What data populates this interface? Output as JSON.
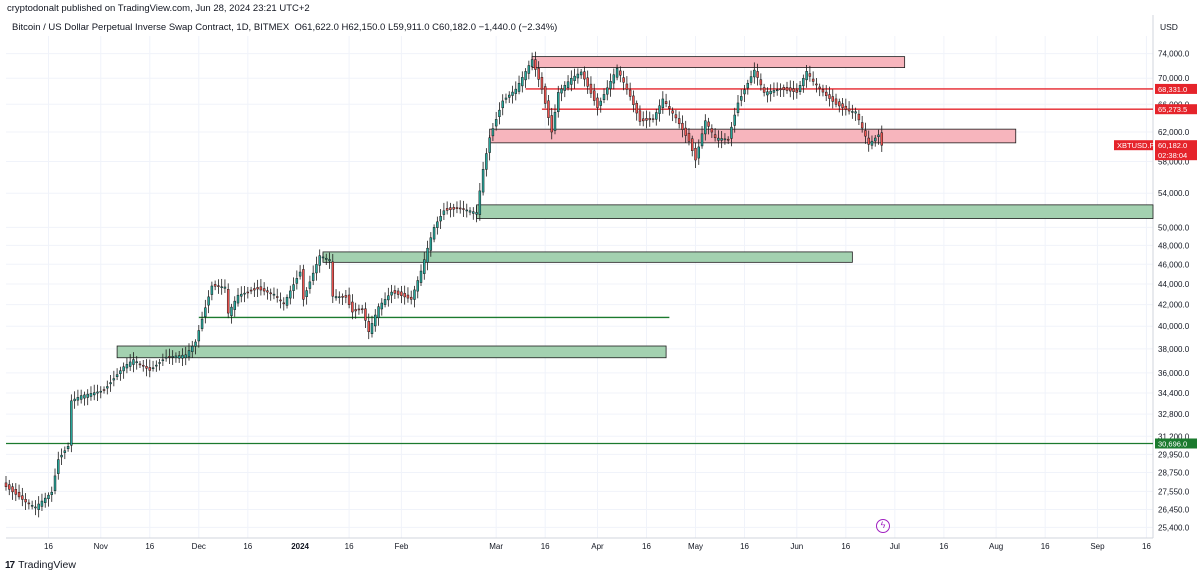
{
  "header": {
    "publisher": "cryptodonalt published on TradingView.com, Jun 28, 2024 23:21 UTC+2",
    "symbol": "Bitcoin / US Dollar Perpetual Inverse Swap Contract, 1D, BITMEX",
    "ohlc": "O61,622.0  H62,150.0  L59,911.0  C60,182.0  −1,440.0 (−2.34%)"
  },
  "footer": {
    "logo_mark": "17",
    "logo_text": "TradingView"
  },
  "colors": {
    "up": "#26a69a",
    "down": "#ef5350",
    "resistance_fill": "#f7b5bd",
    "resistance_line": "#e5242b",
    "support_fill": "#a3d1b0",
    "support_line": "#1b7a2e",
    "grid": "#f0f3fa"
  },
  "chart_data": {
    "type": "candlestick",
    "title": "Bitcoin / US Dollar Perpetual Inverse Swap Contract, 1D, BITMEX",
    "currency": "USD",
    "y_scale": "log",
    "ylim": [
      24800,
      77000
    ],
    "x_date_range": [
      "2023-10-03",
      "2024-09-18"
    ],
    "y_ticks": [
      "74,000.0",
      "70,000.0",
      "66,000.0",
      "62,000.0",
      "58,000.0",
      "54,000.0",
      "50,000.0",
      "48,000.0",
      "46,000.0",
      "44,000.0",
      "42,000.0",
      "40,000.0",
      "38,000.0",
      "36,000.0",
      "34,400.0",
      "32,800.0",
      "31,200.0",
      "29,950.0",
      "28,750.0",
      "27,550.0",
      "26,450.0",
      "25,400.0"
    ],
    "y_tick_values": [
      74000,
      70000,
      66000,
      62000,
      58000,
      54000,
      50000,
      48000,
      46000,
      44000,
      42000,
      40000,
      38000,
      36000,
      34400,
      32800,
      31200,
      29950,
      28750,
      27550,
      26450,
      25400
    ],
    "x_ticks": [
      {
        "label": "16",
        "date": "2023-10-16"
      },
      {
        "label": "Nov",
        "date": "2023-11-01"
      },
      {
        "label": "16",
        "date": "2023-11-16"
      },
      {
        "label": "Dec",
        "date": "2023-12-01"
      },
      {
        "label": "16",
        "date": "2023-12-16"
      },
      {
        "label": "2024",
        "date": "2024-01-01",
        "bold": true
      },
      {
        "label": "16",
        "date": "2024-01-16"
      },
      {
        "label": "Feb",
        "date": "2024-02-01"
      },
      {
        "label": "Mar",
        "date": "2024-03-01"
      },
      {
        "label": "16",
        "date": "2024-03-16"
      },
      {
        "label": "Apr",
        "date": "2024-04-01"
      },
      {
        "label": "16",
        "date": "2024-04-16"
      },
      {
        "label": "May",
        "date": "2024-05-01"
      },
      {
        "label": "16",
        "date": "2024-05-16"
      },
      {
        "label": "Jun",
        "date": "2024-06-01"
      },
      {
        "label": "16",
        "date": "2024-06-16"
      },
      {
        "label": "Jul",
        "date": "2024-07-01"
      },
      {
        "label": "16",
        "date": "2024-07-16"
      },
      {
        "label": "Aug",
        "date": "2024-08-01"
      },
      {
        "label": "16",
        "date": "2024-08-16"
      },
      {
        "label": "Sep",
        "date": "2024-09-01"
      },
      {
        "label": "16",
        "date": "2024-09-16"
      }
    ],
    "price_path": [
      [
        "2023-10-03",
        28000
      ],
      [
        "2023-10-10",
        26900
      ],
      [
        "2023-10-13",
        26600
      ],
      [
        "2023-10-18",
        27500
      ],
      [
        "2023-10-20",
        29600
      ],
      [
        "2023-10-23",
        30500
      ],
      [
        "2023-10-24",
        33800
      ],
      [
        "2023-10-27",
        34200
      ],
      [
        "2023-11-03",
        34600
      ],
      [
        "2023-11-09",
        36500
      ],
      [
        "2023-11-12",
        37100
      ],
      [
        "2023-11-17",
        36200
      ],
      [
        "2023-11-22",
        37300
      ],
      [
        "2023-11-28",
        37500
      ],
      [
        "2023-12-01",
        38600
      ],
      [
        "2023-12-04",
        41700
      ],
      [
        "2023-12-06",
        43800
      ],
      [
        "2023-12-10",
        43700
      ],
      [
        "2023-12-11",
        41200
      ],
      [
        "2023-12-14",
        42900
      ],
      [
        "2023-12-20",
        43500
      ],
      [
        "2023-12-25",
        43000
      ],
      [
        "2023-12-28",
        42100
      ],
      [
        "2024-01-02",
        45200
      ],
      [
        "2024-01-03",
        42500
      ],
      [
        "2024-01-08",
        46900
      ],
      [
        "2024-01-11",
        46500
      ],
      [
        "2024-01-12",
        42800
      ],
      [
        "2024-01-16",
        42700
      ],
      [
        "2024-01-18",
        41300
      ],
      [
        "2024-01-21",
        41600
      ],
      [
        "2024-01-23",
        39500
      ],
      [
        "2024-01-26",
        41800
      ],
      [
        "2024-01-30",
        43200
      ],
      [
        "2024-02-05",
        42500
      ],
      [
        "2024-02-08",
        45300
      ],
      [
        "2024-02-10",
        47700
      ],
      [
        "2024-02-12",
        50000
      ],
      [
        "2024-02-15",
        51900
      ],
      [
        "2024-02-20",
        52200
      ],
      [
        "2024-02-25",
        51700
      ],
      [
        "2024-02-27",
        57000
      ],
      [
        "2024-02-29",
        61200
      ],
      [
        "2024-03-04",
        66500
      ],
      [
        "2024-03-08",
        68300
      ],
      [
        "2024-03-13",
        73000
      ],
      [
        "2024-03-16",
        68300
      ],
      [
        "2024-03-19",
        62000
      ],
      [
        "2024-03-21",
        67800
      ],
      [
        "2024-03-25",
        70000
      ],
      [
        "2024-03-28",
        71000
      ],
      [
        "2024-04-02",
        65500
      ],
      [
        "2024-04-05",
        68500
      ],
      [
        "2024-04-08",
        71600
      ],
      [
        "2024-04-12",
        67200
      ],
      [
        "2024-04-15",
        63500
      ],
      [
        "2024-04-19",
        63800
      ],
      [
        "2024-04-22",
        66800
      ],
      [
        "2024-04-26",
        64000
      ],
      [
        "2024-04-30",
        60700
      ],
      [
        "2024-05-02",
        58200
      ],
      [
        "2024-05-05",
        63600
      ],
      [
        "2024-05-08",
        61200
      ],
      [
        "2024-05-12",
        61000
      ],
      [
        "2024-05-15",
        66200
      ],
      [
        "2024-05-20",
        71300
      ],
      [
        "2024-05-23",
        67800
      ],
      [
        "2024-05-28",
        68300
      ],
      [
        "2024-06-02",
        67800
      ],
      [
        "2024-06-05",
        71100
      ],
      [
        "2024-06-07",
        69500
      ],
      [
        "2024-06-11",
        67300
      ],
      [
        "2024-06-14",
        66000
      ],
      [
        "2024-06-18",
        65000
      ],
      [
        "2024-06-20",
        64900
      ],
      [
        "2024-06-24",
        60300
      ],
      [
        "2024-06-27",
        61600
      ],
      [
        "2024-06-28",
        60182
      ]
    ],
    "zones": [
      {
        "kind": "resistance",
        "start": "2024-03-12",
        "end": "2024-07-04",
        "low": 71700,
        "high": 73500
      },
      {
        "kind": "resistance",
        "start": "2024-02-28",
        "end": "2024-08-07",
        "low": 60500,
        "high": 62400
      },
      {
        "kind": "support",
        "start": "2024-02-24",
        "end": "2024-09-18",
        "low": 51000,
        "high": 52600
      },
      {
        "kind": "support",
        "start": "2024-01-08",
        "end": "2024-06-18",
        "low": 46200,
        "high": 47300
      },
      {
        "kind": "support",
        "start": "2023-11-06",
        "end": "2024-04-22",
        "low": 37250,
        "high": 38250
      }
    ],
    "lines": [
      {
        "kind": "resistance",
        "start": "2024-03-10",
        "end": "2024-09-18",
        "price": 68331
      },
      {
        "kind": "resistance",
        "start": "2024-03-15",
        "end": "2024-09-18",
        "price": 65273.5
      },
      {
        "kind": "support",
        "start": "2023-12-01",
        "end": "2024-04-23",
        "price": 40800
      },
      {
        "kind": "support",
        "start": "2023-10-03",
        "end": "2024-09-18",
        "price": 30696
      }
    ],
    "price_labels": [
      {
        "text": "68,331.0",
        "price": 68331,
        "kind": "resistance"
      },
      {
        "text": "65,273.5",
        "price": 65273.5,
        "kind": "resistance"
      },
      {
        "text": "60,182.0",
        "price": 60182,
        "kind": "last",
        "sub": "02:38:04"
      },
      {
        "text": "30,696.0",
        "price": 30696,
        "kind": "support"
      }
    ],
    "ticker_label": "XBTUSD.P"
  }
}
